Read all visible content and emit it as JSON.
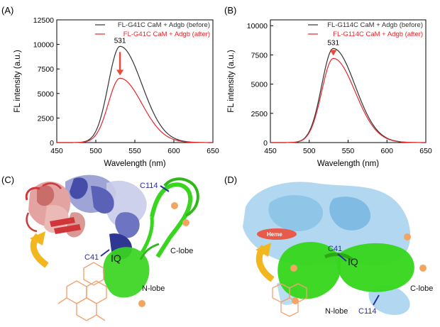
{
  "panels": {
    "A": "(A)",
    "B": "(B)",
    "C": "(C)",
    "D": "(D)"
  },
  "chart_data": [
    {
      "type": "line",
      "panel": "(A)",
      "xlabel": "Wavelength (nm)",
      "ylabel": "FL intensity (a.u.)",
      "xlim": [
        450,
        650
      ],
      "ylim": [
        0,
        12500
      ],
      "xticks": [
        450,
        500,
        550,
        600,
        650
      ],
      "yticks": [
        0,
        2500,
        5000,
        7500,
        10000,
        12500
      ],
      "legend_position": "top-right",
      "annotation": "531",
      "annotation_x": 531,
      "series": [
        {
          "name": "FL-G41C CaM + Adgb (before)",
          "color": "#333333",
          "peak_x": 531,
          "peak_y": 9800,
          "sigma_left": 15,
          "sigma_right": 28,
          "baseline": 0
        },
        {
          "name": "FL-G41C CaM + Adgb (after)",
          "color": "#e8252b",
          "peak_x": 531,
          "peak_y": 6550,
          "sigma_left": 15,
          "sigma_right": 28,
          "baseline": 0
        }
      ]
    },
    {
      "type": "line",
      "panel": "(B)",
      "xlabel": "Wavelength (nm)",
      "ylabel": "FL intensity (a.u.)",
      "xlim": [
        450,
        650
      ],
      "ylim": [
        0,
        10500
      ],
      "xticks": [
        450,
        500,
        550,
        600,
        650
      ],
      "yticks": [
        0,
        2500,
        5000,
        7500,
        10000
      ],
      "legend_position": "top-right",
      "annotation": "531",
      "annotation_x": 531,
      "series": [
        {
          "name": "FL-G114C CaM + Adgb (before)",
          "color": "#333333",
          "peak_x": 531,
          "peak_y": 8050,
          "sigma_left": 15,
          "sigma_right": 28,
          "baseline": 0
        },
        {
          "name": "FL-G114C CaM + Adgb (after)",
          "color": "#e8252b",
          "peak_x": 531,
          "peak_y": 7200,
          "sigma_left": 15,
          "sigma_right": 28,
          "baseline": 0
        }
      ]
    }
  ],
  "structure_C": {
    "labels": {
      "site": "C41",
      "site2": "C114",
      "iq": "IQ",
      "nlobe": "N-lobe",
      "clobe": "C-lobe"
    },
    "colors": {
      "adgb_red": "#d0353a",
      "adgb_pink": "#e3a3a0",
      "adgb_blue": "#5a62b8",
      "cam_green": "#3ad520",
      "fluorescein": "#f2a372",
      "arrow_yellow": "#f2b71e",
      "sphere": "#f2a560"
    }
  },
  "structure_D": {
    "labels": {
      "heme": "Heme",
      "site": "C41",
      "site2": "C114",
      "iq": "IQ",
      "nlobe": "N-lobe",
      "clobe": "C-lobe"
    },
    "colors": {
      "adgb_lightblue": "#a9d4ee",
      "cam_green": "#35d61a",
      "heme": "#e85a4a",
      "fluorescein": "#f2a372",
      "arrow_yellow": "#f2b71e",
      "sphere": "#f2a560"
    }
  }
}
